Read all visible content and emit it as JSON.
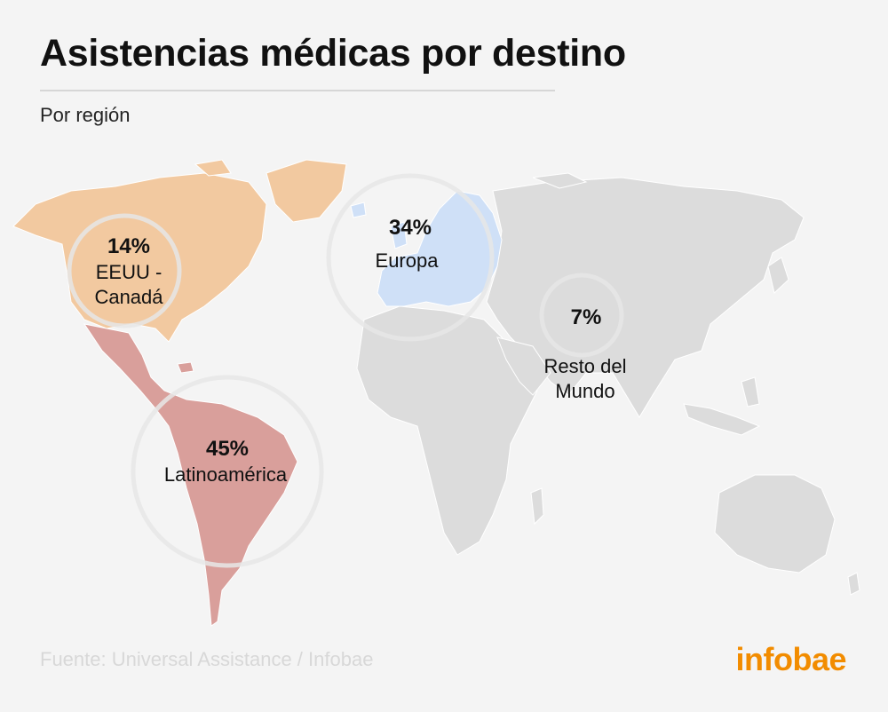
{
  "title": "Asistencias médicas por destino",
  "subtitle": "Por región",
  "regions": {
    "northamerica": {
      "pct": "14%",
      "label_lines": [
        "EEUU -",
        "Canadá"
      ],
      "value": 14,
      "color": "#f2c9a0"
    },
    "latam": {
      "pct": "45%",
      "label_lines": [
        "Latinoamérica"
      ],
      "value": 45,
      "color": "#d99f9b"
    },
    "europe": {
      "pct": "34%",
      "label_lines": [
        "Europa"
      ],
      "value": 34,
      "color": "#cfe0f7"
    },
    "rest": {
      "pct": "7%",
      "label_lines": [
        "Resto del",
        "Mundo"
      ],
      "value": 7,
      "color": "#dcdcdc"
    }
  },
  "source": "Fuente: Universal Assistance  / Infobae",
  "logo": "infobae"
}
